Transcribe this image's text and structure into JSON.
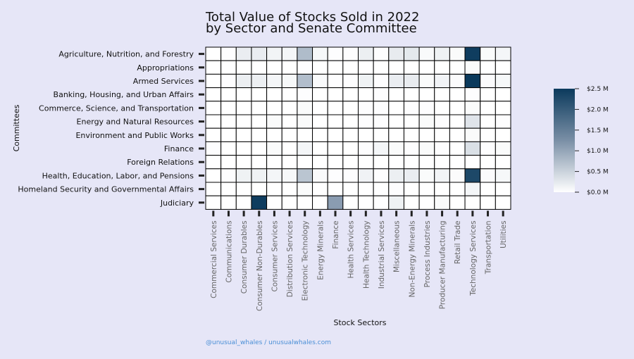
{
  "chart_data": {
    "type": "heatmap",
    "title": "Total Value of Stocks Sold in 2022",
    "subtitle": "by Sector and Senate Committee",
    "xlabel": "Stock Sectors",
    "ylabel": "Committees",
    "rows": [
      "Agriculture, Nutrition, and Forestry",
      "Appropriations",
      "Armed Services",
      "Banking, Housing, and Urban Affairs",
      "Commerce, Science, and Transportation",
      "Energy and Natural Resources",
      "Environment and Public Works",
      "Finance",
      "Foreign Relations",
      "Health, Education, Labor, and Pensions",
      "Homeland Security and Governmental Affairs",
      "Judiciary"
    ],
    "columns": [
      "Commercial Services",
      "Communications",
      "Consumer Durables",
      "Consumer Non-Durables",
      "Consumer Services",
      "Distribution Services",
      "Electronic Technology",
      "Energy Minerals",
      "Finance",
      "Health Services",
      "Health Technology",
      "Industrial Services",
      "Miscellaneous",
      "Non-Energy Minerals",
      "Process Industries",
      "Producer Manufacturing",
      "Retail Trade",
      "Technology Services",
      "Transportation",
      "Utilities"
    ],
    "values": [
      [
        0.0,
        0.02,
        0.2,
        0.2,
        0.12,
        0.1,
        0.75,
        0.08,
        0.02,
        0.02,
        0.18,
        0.02,
        0.22,
        0.25,
        0.06,
        0.15,
        0.05,
        2.45,
        0.05,
        0.1
      ],
      [
        0.0,
        0.0,
        0.0,
        0.0,
        0.0,
        0.0,
        0.02,
        0.0,
        0.0,
        0.0,
        0.0,
        0.0,
        0.0,
        0.0,
        0.0,
        0.0,
        0.0,
        0.05,
        0.0,
        0.0
      ],
      [
        0.0,
        0.02,
        0.18,
        0.18,
        0.1,
        0.08,
        0.72,
        0.06,
        0.02,
        0.02,
        0.15,
        0.02,
        0.2,
        0.22,
        0.05,
        0.13,
        0.04,
        2.5,
        0.04,
        0.08
      ],
      [
        0.0,
        0.0,
        0.0,
        0.0,
        0.0,
        0.0,
        0.02,
        0.0,
        0.0,
        0.0,
        0.0,
        0.02,
        0.0,
        0.0,
        0.0,
        0.0,
        0.0,
        0.02,
        0.0,
        0.0
      ],
      [
        0.0,
        0.0,
        0.0,
        0.0,
        0.0,
        0.0,
        0.05,
        0.0,
        0.0,
        0.0,
        0.02,
        0.02,
        0.0,
        0.02,
        0.02,
        0.0,
        0.0,
        0.05,
        0.0,
        0.0
      ],
      [
        0.0,
        0.0,
        0.0,
        0.0,
        0.05,
        0.0,
        0.05,
        0.0,
        0.0,
        0.0,
        0.02,
        0.02,
        0.0,
        0.0,
        0.05,
        0.02,
        0.0,
        0.3,
        0.0,
        0.02
      ],
      [
        0.0,
        0.0,
        0.0,
        0.0,
        0.0,
        0.0,
        0.0,
        0.0,
        0.0,
        0.0,
        0.0,
        0.0,
        0.0,
        0.0,
        0.0,
        0.0,
        0.0,
        0.05,
        0.0,
        0.0
      ],
      [
        0.02,
        0.0,
        0.0,
        0.0,
        0.05,
        0.0,
        0.1,
        0.0,
        0.0,
        0.0,
        0.02,
        0.1,
        0.05,
        0.02,
        0.05,
        0.02,
        0.0,
        0.35,
        0.02,
        0.05
      ],
      [
        0.0,
        0.0,
        0.0,
        0.0,
        0.0,
        0.0,
        0.0,
        0.0,
        0.0,
        0.0,
        0.0,
        0.0,
        0.0,
        0.0,
        0.0,
        0.0,
        0.0,
        0.0,
        0.0,
        0.0
      ],
      [
        0.0,
        0.02,
        0.15,
        0.15,
        0.1,
        0.08,
        0.65,
        0.06,
        0.02,
        0.02,
        0.14,
        0.02,
        0.18,
        0.2,
        0.05,
        0.12,
        0.04,
        2.3,
        0.04,
        0.08
      ],
      [
        0.0,
        0.0,
        0.0,
        0.0,
        0.0,
        0.0,
        0.05,
        0.0,
        0.0,
        0.0,
        0.0,
        0.0,
        0.02,
        0.0,
        0.0,
        0.0,
        0.0,
        0.1,
        0.0,
        0.0
      ],
      [
        0.0,
        0.0,
        0.0,
        2.45,
        0.0,
        0.0,
        0.0,
        0.0,
        1.1,
        0.0,
        0.0,
        0.0,
        0.15,
        0.0,
        0.0,
        0.05,
        0.0,
        0.0,
        0.0,
        0.0
      ]
    ],
    "colorbar": {
      "range": [
        0,
        2.5
      ],
      "tick_values": [
        0,
        0.5,
        1.0,
        1.5,
        2.0,
        2.5
      ],
      "tick_labels": [
        "$0.0 M",
        "$0.5 M",
        "$1.0 M",
        "$1.5 M",
        "$2.0 M",
        "$2.5 M"
      ],
      "color_low": "#ffffff",
      "color_mid": "#7a8fa6",
      "color_high": "#0b3a5c"
    },
    "grid": true,
    "legend_placement": "right"
  },
  "colors": {
    "background": "#e6e6f7",
    "cell_border": "#000000",
    "credit": "#4a8fd6"
  },
  "credit": "@unusual_whales / unusualwhales.com"
}
